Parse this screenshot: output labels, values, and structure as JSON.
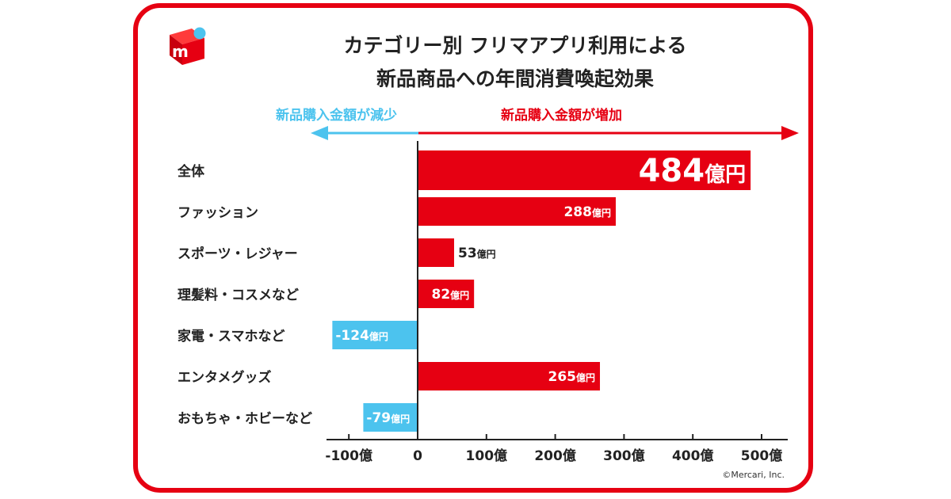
{
  "title_line1": "カテゴリー別 フリマアプリ利用による",
  "title_line2": "新品商品への年間消費喚起効果",
  "direction_left": "新品購入金額が減少",
  "direction_right": "新品購入金額が増加",
  "copyright": "©Mercari, Inc.",
  "colors": {
    "positive": "#e60012",
    "negative": "#4cc3ee",
    "frame": "#e60012",
    "logo_dot": "#4cc3ee"
  },
  "logo_icon": "mercari-logo-icon",
  "chart_data": {
    "type": "bar",
    "orientation": "horizontal",
    "title": "カテゴリー別 フリマアプリ利用による 新品商品への年間消費喚起効果",
    "categories": [
      "全体",
      "ファッション",
      "スポーツ・レジャー",
      "理髪料・コスメなど",
      "家電・スマホなど",
      "エンタメグッズ",
      "おもちゃ・ホビーなど"
    ],
    "values": [
      484,
      288,
      53,
      82,
      -124,
      265,
      -79
    ],
    "value_labels": [
      "484億円",
      "288億円",
      "53億円",
      "82億円",
      "-124億円",
      "265億円",
      "-79億円"
    ],
    "unit": "億円",
    "xlim": [
      -100,
      500
    ],
    "xticks": [
      -100,
      0,
      100,
      200,
      300,
      400,
      500
    ],
    "xtick_labels": [
      "-100億",
      "0",
      "100億",
      "200億",
      "300億",
      "400億",
      "500億"
    ],
    "grid": false,
    "legend": "none"
  }
}
